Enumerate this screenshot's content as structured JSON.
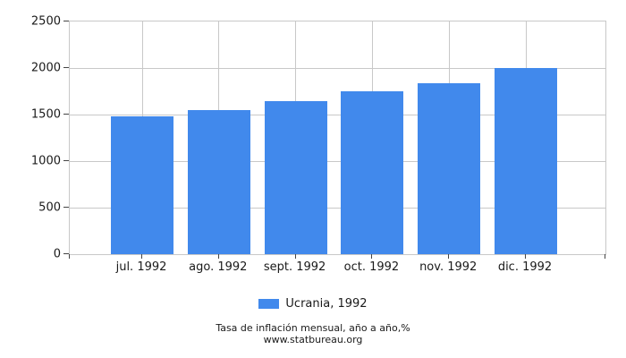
{
  "chart_data": {
    "type": "bar",
    "title": "",
    "categories": [
      "jul. 1992",
      "ago. 1992",
      "sept. 1992",
      "oct. 1992",
      "nov. 1992",
      "dic. 1992"
    ],
    "series": [
      {
        "name": "Ucrania, 1992",
        "values": [
          1482,
          1547,
          1646,
          1752,
          1838,
          2000
        ]
      }
    ],
    "xlabel": "",
    "ylabel": "",
    "ylim": [
      0,
      2500
    ],
    "yticks": [
      0,
      500,
      1000,
      1500,
      2000,
      2500
    ],
    "grid": true,
    "legend_position": "bottom"
  },
  "legend": {
    "label": "Ucrania, 1992"
  },
  "footer": {
    "line1": "Tasa de inflación mensual, año a año,%",
    "line2": "www.statbureau.org"
  },
  "colors": {
    "bar": "#4189EC",
    "grid": "#c8c8c8",
    "tick": "#444444",
    "text": "#1a1a1a"
  }
}
